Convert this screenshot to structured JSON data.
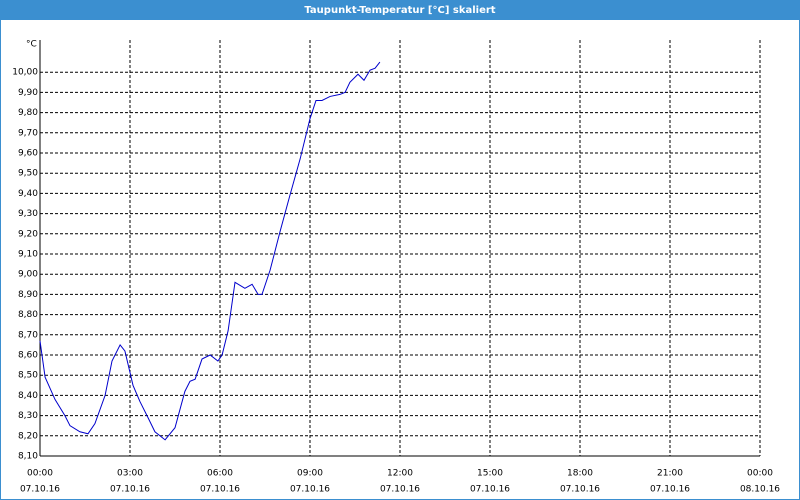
{
  "chart_data": {
    "type": "line",
    "title": "Taupunkt-Temperatur [°C] skaliert",
    "y_unit": "°C",
    "x": [
      0,
      0.17,
      0.5,
      0.83,
      1.0,
      1.33,
      1.6,
      1.83,
      2.17,
      2.4,
      2.67,
      2.83,
      3.1,
      3.33,
      3.6,
      3.83,
      4.17,
      4.5,
      4.83,
      5.0,
      5.17,
      5.4,
      5.67,
      5.93,
      6.07,
      6.27,
      6.5,
      6.83,
      7.07,
      7.27,
      7.4,
      7.67,
      8.0,
      8.33,
      8.67,
      9.0,
      9.2,
      9.4,
      9.67,
      10.0,
      10.17,
      10.33,
      10.6,
      10.8,
      11.0,
      11.17,
      11.33
    ],
    "series": [
      {
        "color": "#0000cc",
        "values": [
          8.67,
          8.49,
          8.38,
          8.3,
          8.25,
          8.22,
          8.21,
          8.26,
          8.4,
          8.57,
          8.65,
          8.62,
          8.45,
          8.37,
          8.29,
          8.22,
          8.18,
          8.24,
          8.42,
          8.47,
          8.48,
          8.58,
          8.6,
          8.57,
          8.6,
          8.72,
          8.96,
          8.93,
          8.95,
          8.9,
          8.9,
          9.02,
          9.21,
          9.39,
          9.57,
          9.77,
          9.86,
          9.86,
          9.88,
          9.89,
          9.9,
          9.95,
          9.99,
          9.96,
          10.01,
          10.02,
          10.05
        ]
      }
    ],
    "xlim": [
      0,
      24
    ],
    "xticks": [
      {
        "value": 0,
        "label": "00:00"
      },
      {
        "value": 3,
        "label": "03:00"
      },
      {
        "value": 6,
        "label": "06:00"
      },
      {
        "value": 9,
        "label": "09:00"
      },
      {
        "value": 12,
        "label": "12:00"
      },
      {
        "value": 15,
        "label": "15:00"
      },
      {
        "value": 18,
        "label": "18:00"
      },
      {
        "value": 21,
        "label": "21:00"
      },
      {
        "value": 24,
        "label": "00:00"
      }
    ],
    "xtick_dates": [
      "07.10.16",
      "07.10.16",
      "07.10.16",
      "07.10.16",
      "07.10.16",
      "07.10.16",
      "07.10.16",
      "07.10.16",
      "08.10.16"
    ],
    "ylim": [
      8.1,
      10.1
    ],
    "yticks": [
      {
        "value": 8.1,
        "label": "8,10"
      },
      {
        "value": 8.2,
        "label": "8,20"
      },
      {
        "value": 8.3,
        "label": "8,30"
      },
      {
        "value": 8.4,
        "label": "8,40"
      },
      {
        "value": 8.5,
        "label": "8,50"
      },
      {
        "value": 8.6,
        "label": "8,60"
      },
      {
        "value": 8.7,
        "label": "8,70"
      },
      {
        "value": 8.8,
        "label": "8,80"
      },
      {
        "value": 8.9,
        "label": "8,90"
      },
      {
        "value": 9.0,
        "label": "9,00"
      },
      {
        "value": 9.1,
        "label": "9,10"
      },
      {
        "value": 9.2,
        "label": "9,20"
      },
      {
        "value": 9.3,
        "label": "9,30"
      },
      {
        "value": 9.4,
        "label": "9,40"
      },
      {
        "value": 9.5,
        "label": "9,50"
      },
      {
        "value": 9.6,
        "label": "9,60"
      },
      {
        "value": 9.7,
        "label": "9,70"
      },
      {
        "value": 9.8,
        "label": "9,80"
      },
      {
        "value": 9.9,
        "label": "9,90"
      },
      {
        "value": 10.0,
        "label": "10,00"
      }
    ],
    "grid": true
  }
}
